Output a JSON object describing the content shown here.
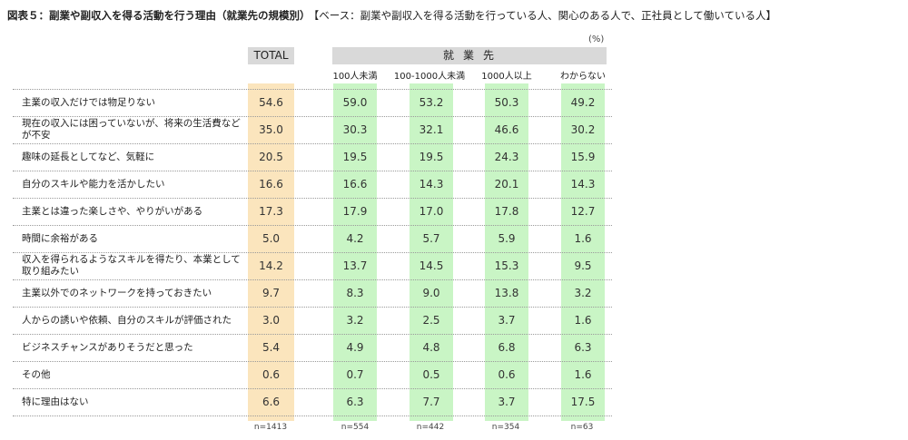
{
  "header": {
    "title": "図表５：副業や副収入を得る活動を行う理由（就業先の規模別）",
    "base_note": "【ベース：副業や副収入を得る活動を行っている人、関心のある人で、正社員として働いている人】",
    "unit": "(%)"
  },
  "columns": {
    "total_label": "TOTAL",
    "group_label": "就業先",
    "sub_labels": [
      "100人未満",
      "100-1000人未満",
      "1000人以上",
      "わからない"
    ]
  },
  "sample_sizes": [
    "n=1413",
    "n=554",
    "n=442",
    "n=354",
    "n=63"
  ],
  "colors": {
    "total_band": "#fbe5bd",
    "group_band": "#c9f5c5",
    "header_bg": "#d9d9d9"
  },
  "chart_data": {
    "type": "table",
    "columns": [
      "TOTAL",
      "100人未満",
      "100-1000人未満",
      "1000人以上",
      "わからない"
    ],
    "rows": [
      {
        "label": "主業の収入だけでは物足りない",
        "values": [
          "54.6",
          "59.0",
          "53.2",
          "50.3",
          "49.2"
        ]
      },
      {
        "label": "現在の収入には困っていないが、将来の生活費などが不安",
        "values": [
          "35.0",
          "30.3",
          "32.1",
          "46.6",
          "30.2"
        ]
      },
      {
        "label": "趣味の延長としてなど、気軽に",
        "values": [
          "20.5",
          "19.5",
          "19.5",
          "24.3",
          "15.9"
        ]
      },
      {
        "label": "自分のスキルや能力を活かしたい",
        "values": [
          "16.6",
          "16.6",
          "14.3",
          "20.1",
          "14.3"
        ]
      },
      {
        "label": "主業とは違った楽しさや、やりがいがある",
        "values": [
          "17.3",
          "17.9",
          "17.0",
          "17.8",
          "12.7"
        ]
      },
      {
        "label": "時間に余裕がある",
        "values": [
          "5.0",
          "4.2",
          "5.7",
          "5.9",
          "1.6"
        ]
      },
      {
        "label": "収入を得られるようなスキルを得たり、本業として取り組みたい",
        "values": [
          "14.2",
          "13.7",
          "14.5",
          "15.3",
          "9.5"
        ]
      },
      {
        "label": "主業以外でのネットワークを持っておきたい",
        "values": [
          "9.7",
          "8.3",
          "9.0",
          "13.8",
          "3.2"
        ]
      },
      {
        "label": "人からの誘いや依頼、自分のスキルが評価された",
        "values": [
          "3.0",
          "3.2",
          "2.5",
          "3.7",
          "1.6"
        ]
      },
      {
        "label": "ビジネスチャンスがありそうだと思った",
        "values": [
          "5.4",
          "4.9",
          "4.8",
          "6.8",
          "6.3"
        ]
      },
      {
        "label": "その他",
        "values": [
          "0.6",
          "0.7",
          "0.5",
          "0.6",
          "1.6"
        ]
      },
      {
        "label": "特に理由はない",
        "values": [
          "6.6",
          "6.3",
          "7.7",
          "3.7",
          "17.5"
        ]
      }
    ]
  }
}
